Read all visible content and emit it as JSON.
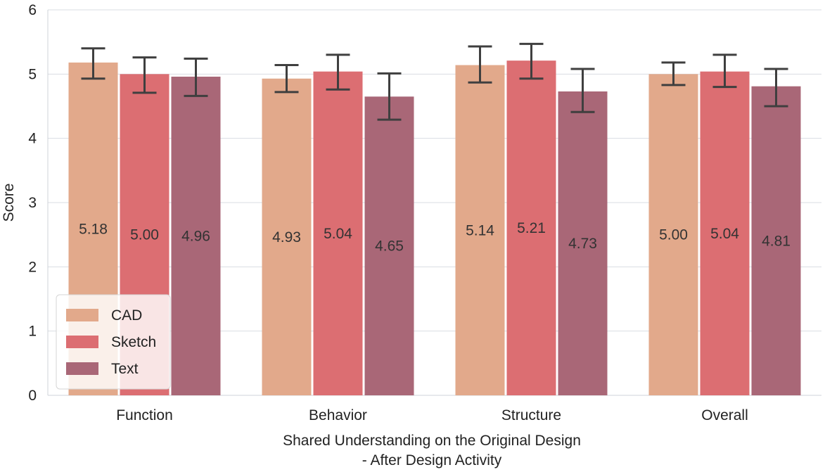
{
  "chart_data": {
    "type": "bar",
    "title": "",
    "xlabel_lines": [
      "Shared Understanding on the Original Design",
      "- After Design Activity"
    ],
    "ylabel": "Score",
    "ylim": [
      0,
      6
    ],
    "yticks": [
      "0",
      "1",
      "2",
      "3",
      "4",
      "5",
      "6"
    ],
    "grid": "horizontal",
    "legend_position": "lower-left",
    "categories": [
      "Function",
      "Behavior",
      "Structure",
      "Overall"
    ],
    "series": [
      {
        "name": "CAD",
        "color": "#e2a98b",
        "values": [
          5.18,
          4.93,
          5.14,
          5.0
        ],
        "labels": [
          "5.18",
          "4.93",
          "5.14",
          "5.00"
        ],
        "err_low": [
          4.93,
          4.72,
          4.87,
          4.83
        ],
        "err_high": [
          5.4,
          5.14,
          5.43,
          5.18
        ]
      },
      {
        "name": "Sketch",
        "color": "#dc6e72",
        "values": [
          5.0,
          5.04,
          5.21,
          5.04
        ],
        "labels": [
          "5.00",
          "5.04",
          "5.21",
          "5.04"
        ],
        "err_low": [
          4.71,
          4.76,
          4.93,
          4.8
        ],
        "err_high": [
          5.26,
          5.3,
          5.47,
          5.3
        ]
      },
      {
        "name": "Text",
        "color": "#a96777",
        "values": [
          4.96,
          4.65,
          4.73,
          4.81
        ],
        "labels": [
          "4.96",
          "4.65",
          "4.73",
          "4.81"
        ],
        "err_low": [
          4.66,
          4.29,
          4.41,
          4.5
        ],
        "err_high": [
          5.24,
          5.01,
          5.08,
          5.08
        ]
      }
    ]
  }
}
